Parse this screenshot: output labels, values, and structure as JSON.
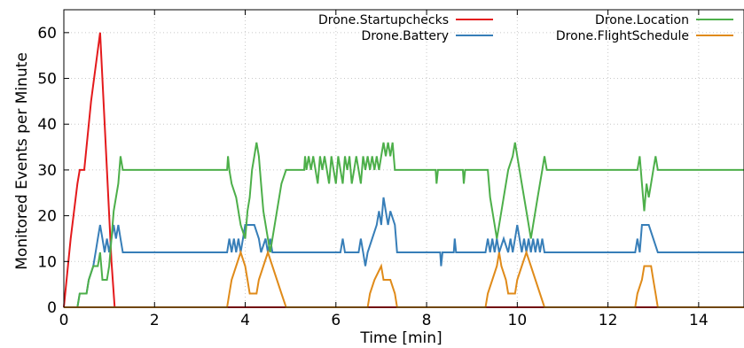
{
  "chart_data": {
    "type": "line",
    "xlabel": "Time [min]",
    "ylabel": "Monitored Events per Minute",
    "xlim": [
      0,
      15
    ],
    "ylim": [
      0,
      65
    ],
    "xticks": [
      0,
      2,
      4,
      6,
      8,
      10,
      12,
      14
    ],
    "yticks": [
      0,
      10,
      20,
      30,
      40,
      50,
      60
    ],
    "grid": true,
    "legend_position": "top",
    "series": [
      {
        "name": "Drone.Startupchecks",
        "color": "#e41a1c",
        "points": [
          [
            0,
            0
          ],
          [
            0.15,
            15
          ],
          [
            0.3,
            27
          ],
          [
            0.35,
            30
          ],
          [
            0.45,
            30
          ],
          [
            0.6,
            45
          ],
          [
            0.8,
            60
          ],
          [
            0.95,
            30
          ],
          [
            1.05,
            10
          ],
          [
            1.12,
            0
          ],
          [
            15,
            0
          ]
        ]
      },
      {
        "name": "Drone.Battery",
        "color": "#377eb8",
        "points": [
          [
            0,
            0
          ],
          [
            0.3,
            0
          ],
          [
            0.35,
            3
          ],
          [
            0.5,
            3
          ],
          [
            0.55,
            6
          ],
          [
            0.65,
            9
          ],
          [
            0.7,
            12
          ],
          [
            0.75,
            15
          ],
          [
            0.8,
            18
          ],
          [
            0.85,
            15
          ],
          [
            0.9,
            12
          ],
          [
            0.95,
            15
          ],
          [
            1.0,
            12
          ],
          [
            1.05,
            15
          ],
          [
            1.1,
            18
          ],
          [
            1.15,
            15
          ],
          [
            1.2,
            18
          ],
          [
            1.25,
            15
          ],
          [
            1.3,
            12
          ],
          [
            3.6,
            12
          ],
          [
            3.65,
            15
          ],
          [
            3.7,
            12
          ],
          [
            3.75,
            15
          ],
          [
            3.8,
            12
          ],
          [
            3.85,
            15
          ],
          [
            3.9,
            12
          ],
          [
            3.95,
            15
          ],
          [
            4.0,
            18
          ],
          [
            4.2,
            18
          ],
          [
            4.3,
            15
          ],
          [
            4.35,
            12
          ],
          [
            4.45,
            15
          ],
          [
            4.5,
            12
          ],
          [
            4.55,
            15
          ],
          [
            4.6,
            12
          ],
          [
            6.1,
            12
          ],
          [
            6.15,
            15
          ],
          [
            6.2,
            12
          ],
          [
            6.5,
            12
          ],
          [
            6.55,
            15
          ],
          [
            6.6,
            12
          ],
          [
            6.65,
            9
          ],
          [
            6.7,
            12
          ],
          [
            6.8,
            15
          ],
          [
            6.9,
            18
          ],
          [
            6.95,
            21
          ],
          [
            7.0,
            18
          ],
          [
            7.05,
            24
          ],
          [
            7.1,
            21
          ],
          [
            7.15,
            18
          ],
          [
            7.2,
            21
          ],
          [
            7.3,
            18
          ],
          [
            7.35,
            12
          ],
          [
            8.3,
            12
          ],
          [
            8.32,
            9
          ],
          [
            8.35,
            12
          ],
          [
            8.6,
            12
          ],
          [
            8.62,
            15
          ],
          [
            8.65,
            12
          ],
          [
            9.3,
            12
          ],
          [
            9.35,
            15
          ],
          [
            9.4,
            12
          ],
          [
            9.45,
            15
          ],
          [
            9.5,
            12
          ],
          [
            9.55,
            15
          ],
          [
            9.6,
            12
          ],
          [
            9.7,
            15
          ],
          [
            9.8,
            12
          ],
          [
            9.85,
            15
          ],
          [
            9.9,
            12
          ],
          [
            9.95,
            15
          ],
          [
            10.0,
            18
          ],
          [
            10.05,
            15
          ],
          [
            10.1,
            12
          ],
          [
            10.15,
            15
          ],
          [
            10.2,
            12
          ],
          [
            10.25,
            15
          ],
          [
            10.3,
            12
          ],
          [
            10.35,
            15
          ],
          [
            10.4,
            12
          ],
          [
            10.45,
            15
          ],
          [
            10.5,
            12
          ],
          [
            10.55,
            15
          ],
          [
            10.6,
            12
          ],
          [
            12.6,
            12
          ],
          [
            12.65,
            15
          ],
          [
            12.7,
            12
          ],
          [
            12.75,
            18
          ],
          [
            12.9,
            18
          ],
          [
            13.0,
            15
          ],
          [
            13.1,
            12
          ],
          [
            15,
            12
          ]
        ]
      },
      {
        "name": "Drone.Location",
        "color": "#4daf4a",
        "points": [
          [
            0,
            0
          ],
          [
            0.3,
            0
          ],
          [
            0.35,
            3
          ],
          [
            0.5,
            3
          ],
          [
            0.55,
            6
          ],
          [
            0.65,
            9
          ],
          [
            0.75,
            9
          ],
          [
            0.8,
            12
          ],
          [
            0.85,
            6
          ],
          [
            0.95,
            6
          ],
          [
            1.0,
            9
          ],
          [
            1.05,
            15
          ],
          [
            1.1,
            21
          ],
          [
            1.2,
            27
          ],
          [
            1.25,
            33
          ],
          [
            1.3,
            30
          ],
          [
            3.6,
            30
          ],
          [
            3.62,
            33
          ],
          [
            3.65,
            30
          ],
          [
            3.7,
            27
          ],
          [
            3.8,
            24
          ],
          [
            3.9,
            18
          ],
          [
            4.0,
            15
          ],
          [
            4.05,
            21
          ],
          [
            4.1,
            24
          ],
          [
            4.15,
            30
          ],
          [
            4.2,
            33
          ],
          [
            4.25,
            36
          ],
          [
            4.3,
            33
          ],
          [
            4.35,
            27
          ],
          [
            4.4,
            21
          ],
          [
            4.5,
            15
          ],
          [
            4.55,
            12
          ],
          [
            4.6,
            15
          ],
          [
            4.7,
            21
          ],
          [
            4.8,
            27
          ],
          [
            4.9,
            30
          ],
          [
            5.3,
            30
          ],
          [
            5.32,
            33
          ],
          [
            5.35,
            30
          ],
          [
            5.4,
            33
          ],
          [
            5.45,
            30
          ],
          [
            5.5,
            33
          ],
          [
            5.55,
            30
          ],
          [
            5.6,
            27
          ],
          [
            5.65,
            33
          ],
          [
            5.7,
            30
          ],
          [
            5.75,
            33
          ],
          [
            5.8,
            30
          ],
          [
            5.85,
            27
          ],
          [
            5.9,
            33
          ],
          [
            5.95,
            30
          ],
          [
            6.0,
            27
          ],
          [
            6.05,
            33
          ],
          [
            6.1,
            30
          ],
          [
            6.15,
            27
          ],
          [
            6.2,
            33
          ],
          [
            6.25,
            30
          ],
          [
            6.3,
            33
          ],
          [
            6.35,
            27
          ],
          [
            6.4,
            30
          ],
          [
            6.45,
            33
          ],
          [
            6.5,
            30
          ],
          [
            6.55,
            27
          ],
          [
            6.6,
            33
          ],
          [
            6.65,
            30
          ],
          [
            6.7,
            33
          ],
          [
            6.75,
            30
          ],
          [
            6.8,
            33
          ],
          [
            6.85,
            30
          ],
          [
            6.9,
            33
          ],
          [
            6.95,
            30
          ],
          [
            7.0,
            33
          ],
          [
            7.05,
            36
          ],
          [
            7.1,
            33
          ],
          [
            7.15,
            36
          ],
          [
            7.2,
            33
          ],
          [
            7.25,
            36
          ],
          [
            7.3,
            30
          ],
          [
            8.2,
            30
          ],
          [
            8.22,
            27
          ],
          [
            8.25,
            30
          ],
          [
            8.8,
            30
          ],
          [
            8.82,
            27
          ],
          [
            8.85,
            30
          ],
          [
            9.35,
            30
          ],
          [
            9.4,
            24
          ],
          [
            9.5,
            18
          ],
          [
            9.55,
            15
          ],
          [
            9.6,
            18
          ],
          [
            9.7,
            24
          ],
          [
            9.8,
            30
          ],
          [
            9.9,
            33
          ],
          [
            9.95,
            36
          ],
          [
            10.0,
            33
          ],
          [
            10.1,
            27
          ],
          [
            10.2,
            21
          ],
          [
            10.3,
            15
          ],
          [
            10.35,
            18
          ],
          [
            10.45,
            24
          ],
          [
            10.55,
            30
          ],
          [
            10.6,
            33
          ],
          [
            10.65,
            30
          ],
          [
            12.65,
            30
          ],
          [
            12.7,
            33
          ],
          [
            12.75,
            27
          ],
          [
            12.8,
            21
          ],
          [
            12.85,
            27
          ],
          [
            12.9,
            24
          ],
          [
            12.95,
            27
          ],
          [
            13.0,
            30
          ],
          [
            13.05,
            33
          ],
          [
            13.1,
            30
          ],
          [
            15,
            30
          ]
        ]
      },
      {
        "name": "Drone.FlightSchedule",
        "color": "#e08b1a",
        "points": [
          [
            0,
            0
          ],
          [
            3.6,
            0
          ],
          [
            3.65,
            3
          ],
          [
            3.7,
            6
          ],
          [
            3.8,
            9
          ],
          [
            3.9,
            12
          ],
          [
            4.0,
            9
          ],
          [
            4.05,
            6
          ],
          [
            4.1,
            3
          ],
          [
            4.25,
            3
          ],
          [
            4.3,
            6
          ],
          [
            4.4,
            9
          ],
          [
            4.5,
            12
          ],
          [
            4.6,
            9
          ],
          [
            4.7,
            6
          ],
          [
            4.8,
            3
          ],
          [
            4.9,
            0
          ],
          [
            6.7,
            0
          ],
          [
            6.75,
            3
          ],
          [
            6.85,
            6
          ],
          [
            7.0,
            9
          ],
          [
            7.05,
            6
          ],
          [
            7.2,
            6
          ],
          [
            7.3,
            3
          ],
          [
            7.35,
            0
          ],
          [
            9.3,
            0
          ],
          [
            9.35,
            3
          ],
          [
            9.45,
            6
          ],
          [
            9.55,
            9
          ],
          [
            9.6,
            12
          ],
          [
            9.65,
            9
          ],
          [
            9.75,
            6
          ],
          [
            9.8,
            3
          ],
          [
            9.95,
            3
          ],
          [
            10.0,
            6
          ],
          [
            10.1,
            9
          ],
          [
            10.2,
            12
          ],
          [
            10.3,
            9
          ],
          [
            10.4,
            6
          ],
          [
            10.5,
            3
          ],
          [
            10.6,
            0
          ],
          [
            12.6,
            0
          ],
          [
            12.65,
            3
          ],
          [
            12.75,
            6
          ],
          [
            12.8,
            9
          ],
          [
            12.95,
            9
          ],
          [
            13.0,
            6
          ],
          [
            13.05,
            3
          ],
          [
            13.1,
            0
          ],
          [
            15,
            0
          ]
        ]
      }
    ]
  }
}
